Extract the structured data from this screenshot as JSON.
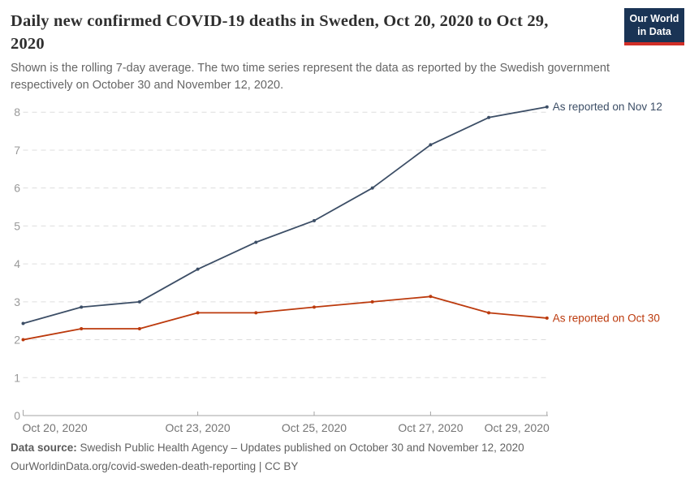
{
  "header": {
    "title": "Daily new confirmed COVID-19 deaths in Sweden, Oct 20, 2020 to Oct 29, 2020",
    "subtitle": "Shown is the rolling 7-day average. The two time series represent the data as reported by the Swedish government respectively on October 30 and November 12, 2020.",
    "logo": {
      "line1": "Our World",
      "line2": "in Data"
    }
  },
  "chart_data": {
    "type": "line",
    "title": "Daily new confirmed COVID-19 deaths in Sweden, Oct 20, 2020 to Oct 29, 2020",
    "xlabel": "",
    "ylabel": "",
    "x": [
      "Oct 20, 2020",
      "Oct 21, 2020",
      "Oct 22, 2020",
      "Oct 23, 2020",
      "Oct 24, 2020",
      "Oct 25, 2020",
      "Oct 26, 2020",
      "Oct 27, 2020",
      "Oct 28, 2020",
      "Oct 29, 2020"
    ],
    "series": [
      {
        "name": "As reported on Nov 12",
        "color": "#3C4E66",
        "values": [
          2.43,
          2.86,
          3.0,
          3.86,
          4.57,
          5.14,
          6.0,
          7.14,
          7.86,
          8.14
        ]
      },
      {
        "name": "As reported on Oct 30",
        "color": "#BC3A0D",
        "values": [
          2.0,
          2.29,
          2.29,
          2.71,
          2.71,
          2.86,
          3.0,
          3.14,
          2.71,
          2.57
        ]
      }
    ],
    "yticks": [
      0,
      1,
      2,
      3,
      4,
      5,
      6,
      7,
      8
    ],
    "ylim": [
      0,
      8.2
    ],
    "xtick_labels": [
      {
        "index": 0,
        "label": "Oct 20, 2020",
        "align": "start"
      },
      {
        "index": 3,
        "label": "Oct 23, 2020",
        "align": "middle"
      },
      {
        "index": 5,
        "label": "Oct 25, 2020",
        "align": "middle"
      },
      {
        "index": 7,
        "label": "Oct 27, 2020",
        "align": "middle"
      },
      {
        "index": 9,
        "label": "Oct 29, 2020",
        "align": "end"
      }
    ],
    "grid": true,
    "legend_position": "line-end-labels"
  },
  "footer": {
    "source_label": "Data source:",
    "source_text": " Swedish Public Health Agency – Updates published on October 30 and November 12, 2020",
    "link_line": "OurWorldinData.org/covid-sweden-death-reporting | CC BY"
  },
  "colors": {
    "series_blue": "#3C4E66",
    "series_red": "#BC3A0D",
    "grid": "#DDDDDD",
    "axis": "#A5A5A5",
    "y_tick_text": "#999999",
    "x_tick_text": "#757575",
    "title_text": "#2F2F2F",
    "subtitle_text": "#666666",
    "logo_bg": "#1A3455",
    "logo_stripe": "#D12E27"
  }
}
